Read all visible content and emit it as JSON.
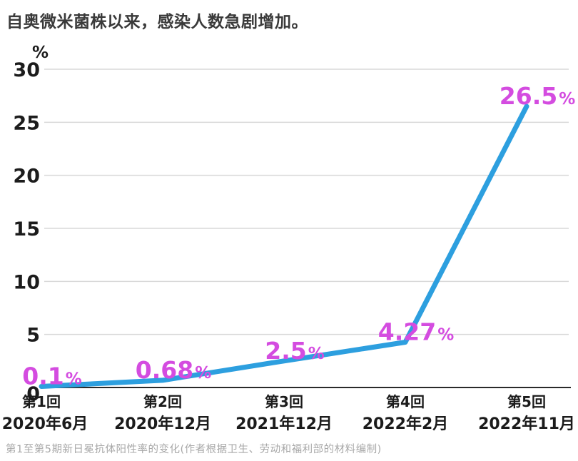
{
  "title": "自奥微米菌株以来，感染人数急剧增加。",
  "caption": "第1至第5期新日冕抗体阳性率的变化(作者根据卫生、劳动和福利部的材料编制)",
  "chart_data": {
    "type": "line",
    "title": "自奥微米菌株以来，感染人数急剧增加。",
    "unit_label": "%",
    "categories": [
      "第1回",
      "第2回",
      "第3回",
      "第4回",
      "第5回"
    ],
    "category_dates": [
      "2020年6月",
      "2020年12月",
      "2021年12月",
      "2022年2月",
      "2022年11月"
    ],
    "values": [
      0.1,
      0.68,
      2.5,
      4.27,
      26.5
    ],
    "data_label_suffix": "%",
    "y_ticks": [
      0,
      5,
      10,
      15,
      20,
      25,
      30
    ],
    "ylim": [
      0,
      30
    ],
    "grid": true,
    "legend": "none",
    "colors": {
      "line": "#2D9FDF",
      "data_label": "#D44CE0",
      "grid": "#d8d8d8",
      "axis": "#2a2a2a",
      "tick_text": "#1c1c1c"
    }
  }
}
